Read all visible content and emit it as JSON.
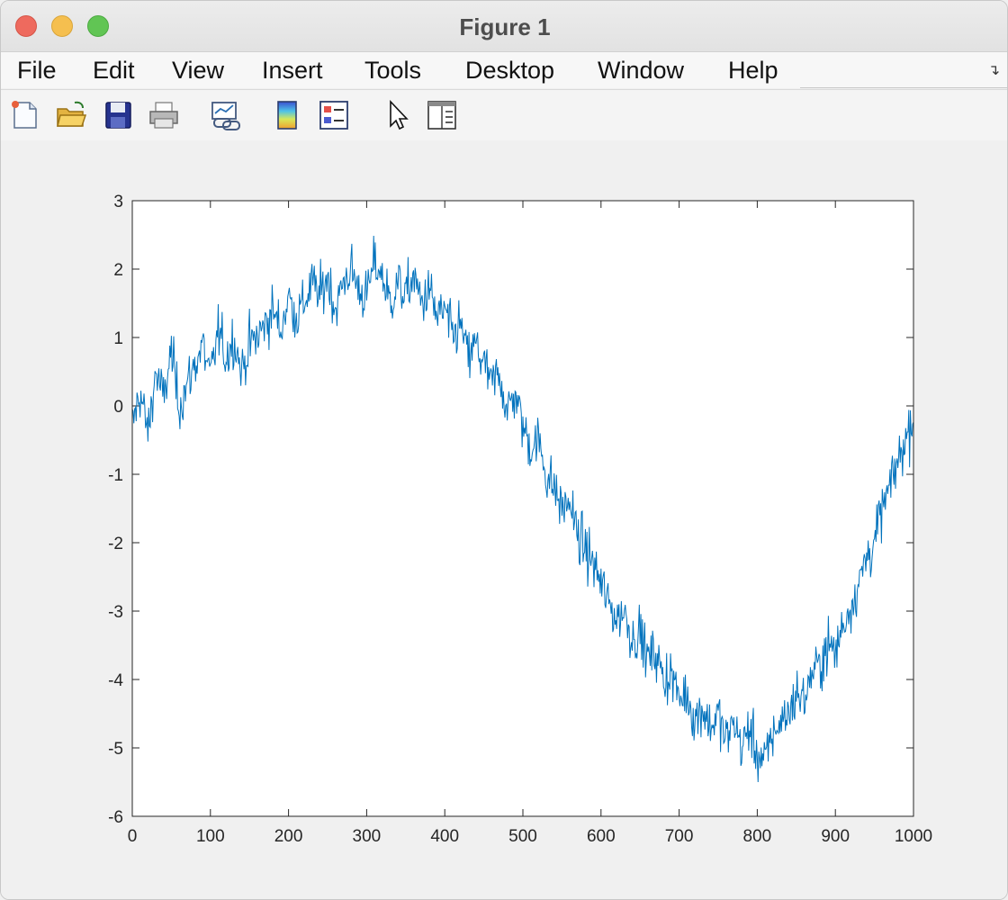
{
  "window": {
    "title": "Figure 1"
  },
  "menu": {
    "items": [
      "File",
      "Edit",
      "View",
      "Insert",
      "Tools",
      "Desktop",
      "Window",
      "Help"
    ]
  },
  "toolbar": {
    "icons": [
      "new-figure-icon",
      "open-file-icon",
      "save-icon",
      "print-icon",
      "link-plot-icon",
      "colorbar-icon",
      "legend-icon",
      "edit-plot-icon",
      "property-inspector-icon"
    ]
  },
  "colors": {
    "line": "#0072bd",
    "axes_background": "#ffffff",
    "figure_background": "#f0f0f0"
  },
  "chart_data": {
    "type": "line",
    "title": "",
    "xlabel": "",
    "ylabel": "",
    "xlim": [
      0,
      1000
    ],
    "ylim": [
      -6,
      3
    ],
    "xticks": [
      0,
      100,
      200,
      300,
      400,
      500,
      600,
      700,
      800,
      900,
      1000
    ],
    "yticks": [
      3,
      2,
      1,
      0,
      -1,
      -2,
      -3,
      -4,
      -5,
      -6
    ],
    "grid": false,
    "legend": false,
    "series": [
      {
        "x": [
          0,
          10,
          20,
          30,
          40,
          50,
          60,
          70,
          80,
          90,
          100,
          110,
          120,
          130,
          140,
          150,
          160,
          170,
          180,
          190,
          200,
          210,
          220,
          230,
          240,
          250,
          260,
          270,
          280,
          290,
          300,
          310,
          320,
          330,
          340,
          350,
          360,
          370,
          380,
          390,
          400,
          410,
          420,
          430,
          440,
          450,
          460,
          470,
          480,
          490,
          500,
          510,
          520,
          530,
          540,
          550,
          560,
          570,
          580,
          590,
          600,
          610,
          620,
          630,
          640,
          650,
          660,
          670,
          680,
          690,
          700,
          710,
          720,
          730,
          740,
          750,
          760,
          770,
          780,
          790,
          800,
          810,
          820,
          830,
          840,
          850,
          860,
          870,
          880,
          890,
          900,
          910,
          920,
          930,
          940,
          950,
          960,
          970,
          980,
          990,
          1000
        ],
        "y": [
          -0.3,
          0.2,
          -0.4,
          0.5,
          0.1,
          0.8,
          0.0,
          0.3,
          0.6,
          0.9,
          0.4,
          1.1,
          0.7,
          1.0,
          0.5,
          0.9,
          1.0,
          1.2,
          1.4,
          1.1,
          1.6,
          1.3,
          1.5,
          1.8,
          1.6,
          1.9,
          1.4,
          1.8,
          2.0,
          1.7,
          1.6,
          2.1,
          1.9,
          1.5,
          1.8,
          1.6,
          1.9,
          1.5,
          1.7,
          1.3,
          1.4,
          1.0,
          1.2,
          0.7,
          0.9,
          0.6,
          0.3,
          0.5,
          -0.1,
          0.2,
          -0.3,
          -0.6,
          -0.5,
          -1.0,
          -1.2,
          -1.5,
          -1.4,
          -1.9,
          -2.1,
          -2.3,
          -2.6,
          -2.9,
          -3.1,
          -3.0,
          -3.4,
          -3.3,
          -3.7,
          -3.6,
          -4.0,
          -3.9,
          -4.3,
          -4.2,
          -4.6,
          -4.4,
          -4.7,
          -4.5,
          -4.9,
          -4.6,
          -5.0,
          -4.7,
          -5.1,
          -5.2,
          -4.8,
          -4.6,
          -4.5,
          -4.2,
          -4.3,
          -3.9,
          -3.8,
          -3.5,
          -3.6,
          -3.2,
          -2.9,
          -2.6,
          -2.2,
          -2.0,
          -1.5,
          -1.2,
          -0.8,
          -0.5,
          -0.1
        ]
      }
    ]
  }
}
